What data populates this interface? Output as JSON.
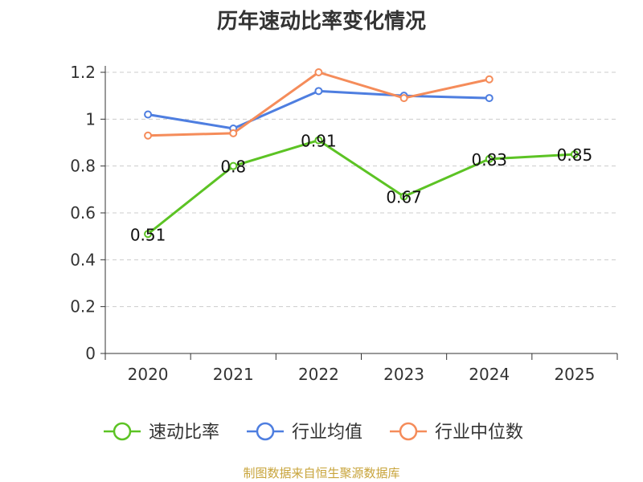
{
  "chart_data": {
    "type": "line",
    "title": "历年速动比率变化情况",
    "categories": [
      "2020",
      "2021",
      "2022",
      "2023",
      "2024",
      "2025"
    ],
    "ylim": [
      0,
      1.2
    ],
    "yticks": [
      "0",
      "0.2",
      "0.4",
      "0.6",
      "0.8",
      "1",
      "1.2"
    ],
    "grid": "horizontal-dashed",
    "legend_position": "bottom",
    "series": [
      {
        "name": "速动比率",
        "color": "#5cc324",
        "values": [
          0.51,
          0.8,
          0.91,
          0.67,
          0.83,
          0.85
        ],
        "labels": [
          "0.51",
          "0.8",
          "0.91",
          "0.67",
          "0.83",
          "0.85"
        ]
      },
      {
        "name": "行业均值",
        "color": "#4e7ee0",
        "values": [
          1.02,
          0.96,
          1.12,
          1.1,
          1.09,
          null
        ]
      },
      {
        "name": "行业中位数",
        "color": "#f58c5a",
        "values": [
          0.93,
          0.94,
          1.2,
          1.09,
          1.17,
          null
        ]
      }
    ]
  },
  "footer": "制图数据来自恒生聚源数据库"
}
